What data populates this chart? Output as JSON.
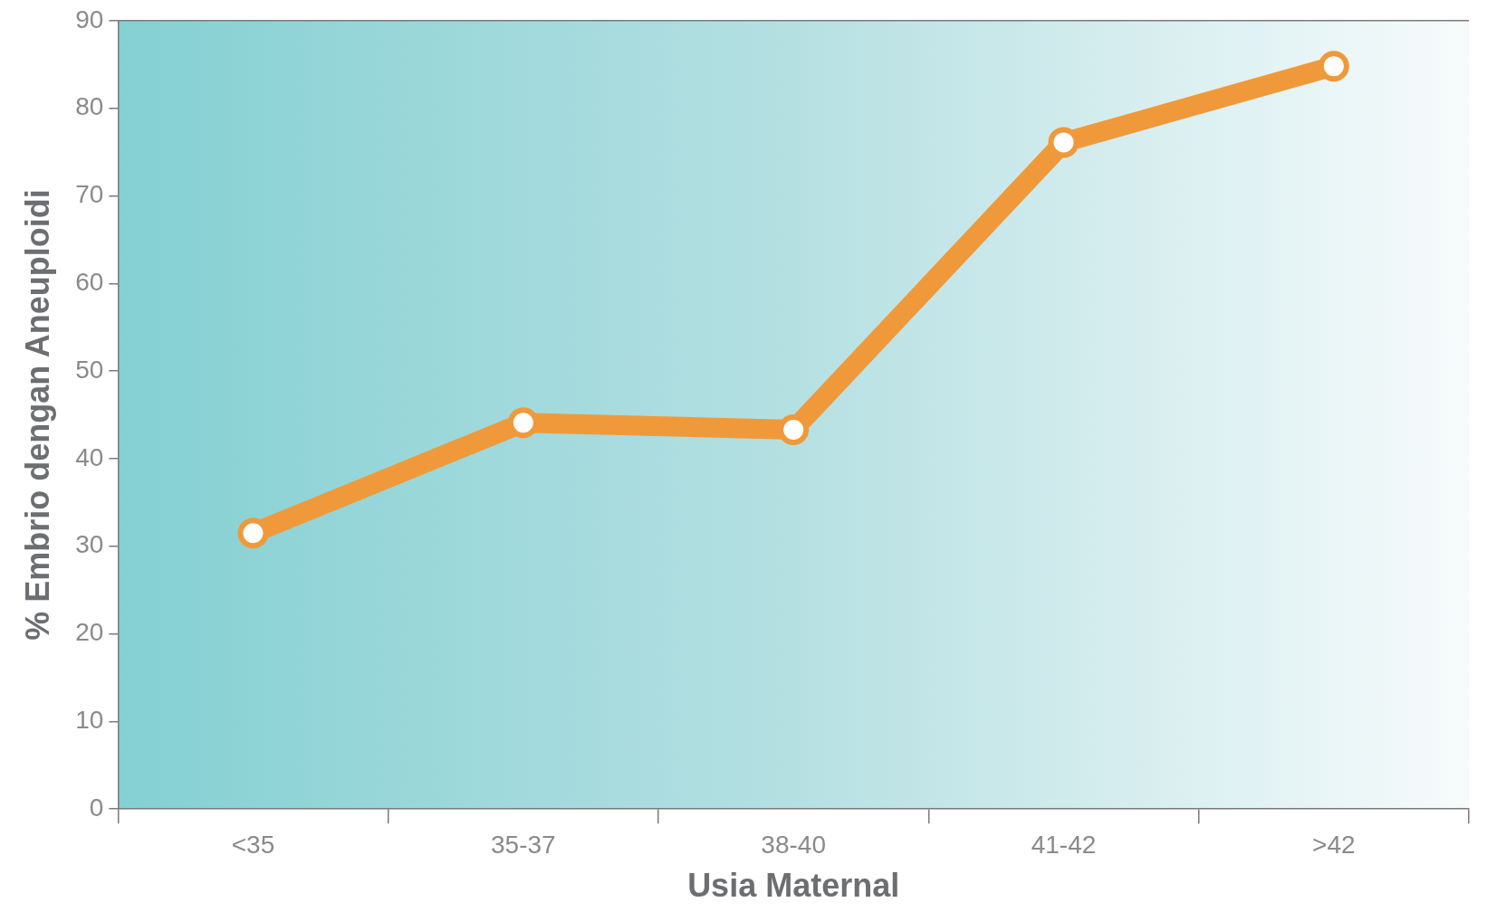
{
  "chart_data": {
    "type": "line",
    "xlabel": "Usia Maternal",
    "ylabel": "% Embrio dengan Aneuploidi",
    "categories": [
      "<35",
      "35-37",
      "38-40",
      "41-42",
      ">42"
    ],
    "series": [
      {
        "color": "#f0993a",
        "values": [
          31.5,
          44.1,
          43.3,
          76.1,
          84.8
        ]
      }
    ],
    "ylim": [
      0,
      90
    ],
    "yticks": [
      0,
      10,
      20,
      30,
      40,
      50,
      60,
      70,
      80,
      90
    ],
    "grid": false,
    "legend": false,
    "marker": "circle",
    "line_style": "solid"
  }
}
